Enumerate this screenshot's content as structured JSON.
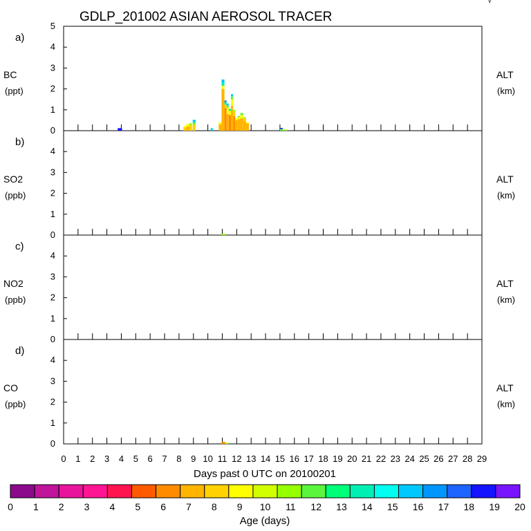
{
  "title": "GDLP_201002 ASIAN AEROSOL TRACER",
  "corner_mark": "√",
  "xlabel": "Days past 0 UTC on 20100201",
  "x_ticks": [
    "0",
    "1",
    "2",
    "3",
    "4",
    "5",
    "6",
    "7",
    "8",
    "9",
    "10",
    "11",
    "12",
    "13",
    "14",
    "15",
    "16",
    "17",
    "18",
    "19",
    "20",
    "21",
    "22",
    "23",
    "24",
    "25",
    "26",
    "27",
    "28",
    "29"
  ],
  "panels": [
    {
      "letter": "a)",
      "species": "BC",
      "unit": "(ppt)",
      "right_label": "ALT",
      "right_unit": "(km)",
      "y_ticks": [
        "0",
        "1",
        "2",
        "3",
        "4",
        "5"
      ]
    },
    {
      "letter": "b)",
      "species": "SO2",
      "unit": "(ppb)",
      "right_label": "ALT",
      "right_unit": "(km)",
      "y_ticks": [
        "0",
        "1",
        "2",
        "3",
        "4"
      ]
    },
    {
      "letter": "c)",
      "species": "NO2",
      "unit": "(ppb)",
      "right_label": "ALT",
      "right_unit": "(km)",
      "y_ticks": [
        "0",
        "1",
        "2",
        "3",
        "4"
      ]
    },
    {
      "letter": "d)",
      "species": "CO",
      "unit": "(ppb)",
      "right_label": "ALT",
      "right_unit": "(km)",
      "y_ticks": [
        "0",
        "1",
        "2",
        "3",
        "4"
      ]
    }
  ],
  "colorbar": {
    "label": "Age (days)",
    "ticks": [
      "0",
      "1",
      "2",
      "3",
      "4",
      "5",
      "6",
      "7",
      "8",
      "9",
      "10",
      "11",
      "12",
      "13",
      "14",
      "15",
      "16",
      "17",
      "18",
      "19",
      "20"
    ],
    "colors": [
      "#8B0A8B",
      "#C0149A",
      "#E8149B",
      "#FF1493",
      "#FF1450",
      "#FF5A00",
      "#FF8C00",
      "#FFB400",
      "#FFD200",
      "#FFFF00",
      "#D2FF00",
      "#96FF00",
      "#5AF53C",
      "#00FF78",
      "#00F0B4",
      "#00FFF0",
      "#00C8FF",
      "#0096FF",
      "#1E64FF",
      "#1414FF",
      "#7814FF"
    ]
  },
  "chart_data": {
    "type": "bar",
    "xlim": [
      0,
      29
    ],
    "stacks": [
      {
        "panel": 0,
        "x": 3.75,
        "w": 0.3,
        "segments": [
          {
            "value": 0.12,
            "color": "#1414FF"
          }
        ]
      },
      {
        "panel": 0,
        "x": 8.3,
        "w": 0.2,
        "segments": [
          {
            "value": 0.15,
            "color": "#FFD200"
          },
          {
            "value": 0.08,
            "color": "#FFFF00"
          }
        ]
      },
      {
        "panel": 0,
        "x": 8.5,
        "w": 0.2,
        "segments": [
          {
            "value": 0.2,
            "color": "#FFB400"
          },
          {
            "value": 0.12,
            "color": "#FFFF00"
          }
        ]
      },
      {
        "panel": 0,
        "x": 8.7,
        "w": 0.2,
        "segments": [
          {
            "value": 0.25,
            "color": "#FFD200"
          },
          {
            "value": 0.1,
            "color": "#96FF00"
          }
        ]
      },
      {
        "panel": 0,
        "x": 8.95,
        "w": 0.2,
        "segments": [
          {
            "value": 0.3,
            "color": "#FFD200"
          },
          {
            "value": 0.1,
            "color": "#5AF53C"
          },
          {
            "value": 0.12,
            "color": "#00C8FF"
          }
        ]
      },
      {
        "panel": 0,
        "x": 10.2,
        "w": 0.15,
        "segments": [
          {
            "value": 0.12,
            "color": "#00C8FF"
          }
        ]
      },
      {
        "panel": 0,
        "x": 10.75,
        "w": 0.2,
        "segments": [
          {
            "value": 0.3,
            "color": "#FFB400"
          },
          {
            "value": 0.1,
            "color": "#FFFF00"
          }
        ]
      },
      {
        "panel": 0,
        "x": 10.95,
        "w": 0.2,
        "segments": [
          {
            "value": 2.0,
            "color": "#FFB400"
          },
          {
            "value": 0.15,
            "color": "#FFFF00"
          },
          {
            "value": 0.15,
            "color": "#00F0B4"
          },
          {
            "value": 0.15,
            "color": "#00C8FF"
          }
        ]
      },
      {
        "panel": 0,
        "x": 11.15,
        "w": 0.15,
        "segments": [
          {
            "value": 1.1,
            "color": "#FF8C00"
          },
          {
            "value": 0.15,
            "color": "#FFD200"
          },
          {
            "value": 0.1,
            "color": "#00F0B4"
          },
          {
            "value": 0.1,
            "color": "#0096FF"
          }
        ]
      },
      {
        "panel": 0,
        "x": 11.3,
        "w": 0.15,
        "segments": [
          {
            "value": 0.8,
            "color": "#FFB400"
          },
          {
            "value": 0.3,
            "color": "#FFFF00"
          },
          {
            "value": 0.1,
            "color": "#5AF53C"
          },
          {
            "value": 0.1,
            "color": "#00C8FF"
          }
        ]
      },
      {
        "panel": 0,
        "x": 11.45,
        "w": 0.15,
        "segments": [
          {
            "value": 0.75,
            "color": "#FF8C00"
          },
          {
            "value": 0.2,
            "color": "#FFFF00"
          },
          {
            "value": 0.1,
            "color": "#00F0B4"
          }
        ]
      },
      {
        "panel": 0,
        "x": 11.6,
        "w": 0.15,
        "segments": [
          {
            "value": 1.2,
            "color": "#FFB400"
          },
          {
            "value": 0.3,
            "color": "#FFFF00"
          },
          {
            "value": 0.15,
            "color": "#5AF53C"
          },
          {
            "value": 0.1,
            "color": "#00C8FF"
          }
        ]
      },
      {
        "panel": 0,
        "x": 11.75,
        "w": 0.15,
        "segments": [
          {
            "value": 0.7,
            "color": "#FF8C00"
          },
          {
            "value": 0.2,
            "color": "#FFD200"
          },
          {
            "value": 0.1,
            "color": "#96FF00"
          }
        ]
      },
      {
        "panel": 0,
        "x": 11.9,
        "w": 0.15,
        "segments": [
          {
            "value": 0.5,
            "color": "#FFB400"
          },
          {
            "value": 0.1,
            "color": "#FFFF00"
          }
        ]
      },
      {
        "panel": 0,
        "x": 12.05,
        "w": 0.2,
        "segments": [
          {
            "value": 0.55,
            "color": "#FFB400"
          },
          {
            "value": 0.1,
            "color": "#FFFF00"
          },
          {
            "value": 0.05,
            "color": "#5AF53C"
          }
        ]
      },
      {
        "panel": 0,
        "x": 12.25,
        "w": 0.2,
        "segments": [
          {
            "value": 0.6,
            "color": "#FFB400"
          },
          {
            "value": 0.15,
            "color": "#FFFF00"
          },
          {
            "value": 0.1,
            "color": "#5AF53C"
          }
        ]
      },
      {
        "panel": 0,
        "x": 12.45,
        "w": 0.2,
        "segments": [
          {
            "value": 0.45,
            "color": "#FFB400"
          },
          {
            "value": 0.15,
            "color": "#FFD200"
          },
          {
            "value": 0.05,
            "color": "#96FF00"
          }
        ]
      },
      {
        "panel": 0,
        "x": 12.65,
        "w": 0.2,
        "segments": [
          {
            "value": 0.35,
            "color": "#FFB400"
          },
          {
            "value": 0.05,
            "color": "#FFFF00"
          }
        ]
      },
      {
        "panel": 0,
        "x": 15.0,
        "w": 0.2,
        "segments": [
          {
            "value": 0.08,
            "color": "#5AF53C"
          },
          {
            "value": 0.05,
            "color": "#1414FF"
          }
        ]
      },
      {
        "panel": 0,
        "x": 15.2,
        "w": 0.3,
        "segments": [
          {
            "value": 0.05,
            "color": "#96FF00"
          }
        ]
      },
      {
        "panel": 1,
        "x": 10.95,
        "w": 0.3,
        "segments": [
          {
            "value": 0.06,
            "color": "#96FF00"
          }
        ]
      },
      {
        "panel": 3,
        "x": 10.95,
        "w": 0.25,
        "segments": [
          {
            "value": 0.1,
            "color": "#FF8C00"
          }
        ]
      },
      {
        "panel": 3,
        "x": 11.2,
        "w": 0.25,
        "segments": [
          {
            "value": 0.05,
            "color": "#96FF00"
          }
        ]
      }
    ]
  }
}
